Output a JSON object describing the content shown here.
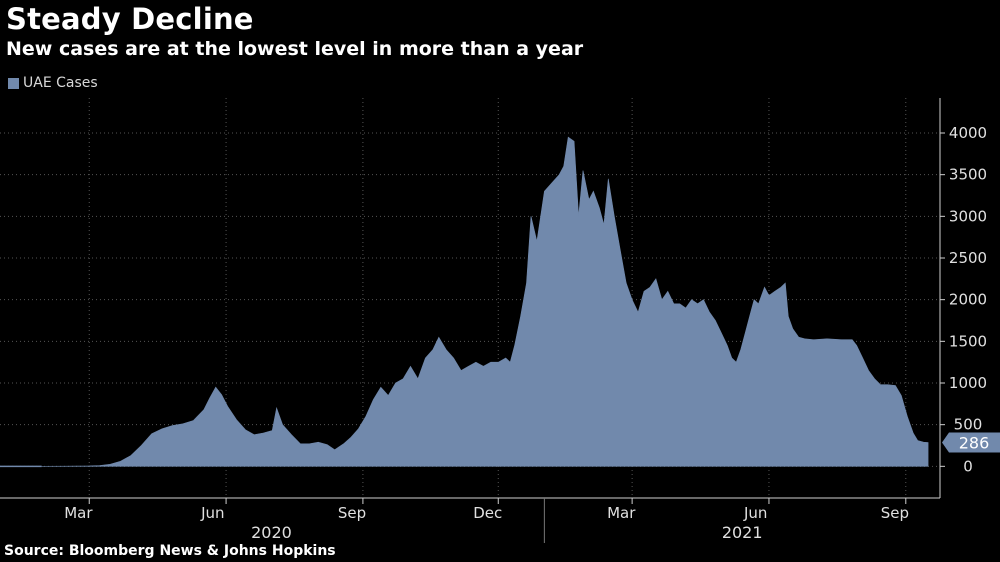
{
  "chart_data": {
    "type": "area",
    "title": "Steady Decline",
    "subtitle": "New cases are at the lowest level in more than a year",
    "source": "Source: Bloomberg News & Johns Hopkins",
    "legend": [
      {
        "name": "UAE Cases",
        "color": "#7189ac"
      }
    ],
    "ylim": [
      -380,
      4420
    ],
    "yticks": [
      0,
      500,
      1000,
      1500,
      2000,
      2500,
      3000,
      3500,
      4000
    ],
    "ytick_labels": [
      "0",
      "500",
      "1000",
      "1500",
      "2000",
      "2500",
      "3000",
      "3500",
      "4000"
    ],
    "xlim": [
      "2020-01-01",
      "2021-09-24"
    ],
    "month_ticks": [
      {
        "date": "2020-03-01",
        "label": "Mar"
      },
      {
        "date": "2020-06-01",
        "label": "Jun"
      },
      {
        "date": "2020-09-01",
        "label": "Sep"
      },
      {
        "date": "2020-12-01",
        "label": "Dec"
      },
      {
        "date": "2021-03-01",
        "label": "Mar"
      },
      {
        "date": "2021-06-01",
        "label": "Jun"
      },
      {
        "date": "2021-09-01",
        "label": "Sep"
      }
    ],
    "year_labels": [
      {
        "label": "2020",
        "from": "2020-01-01",
        "to": "2020-12-31"
      },
      {
        "label": "2021",
        "from": "2021-01-01",
        "to": "2021-09-24"
      }
    ],
    "year_divider": "2021-01-01",
    "last_value": {
      "date": "2021-09-16",
      "value": 286,
      "label": "286"
    },
    "grid": true,
    "series": [
      {
        "name": "UAE Cases",
        "color": "#7189ac",
        "points": [
          [
            "2020-01-29",
            0
          ],
          [
            "2020-02-15",
            2
          ],
          [
            "2020-03-01",
            5
          ],
          [
            "2020-03-08",
            10
          ],
          [
            "2020-03-15",
            25
          ],
          [
            "2020-03-22",
            60
          ],
          [
            "2020-03-29",
            130
          ],
          [
            "2020-04-05",
            250
          ],
          [
            "2020-04-12",
            390
          ],
          [
            "2020-04-19",
            450
          ],
          [
            "2020-04-26",
            490
          ],
          [
            "2020-05-03",
            510
          ],
          [
            "2020-05-10",
            550
          ],
          [
            "2020-05-17",
            680
          ],
          [
            "2020-05-21",
            820
          ],
          [
            "2020-05-25",
            950
          ],
          [
            "2020-05-29",
            860
          ],
          [
            "2020-06-02",
            720
          ],
          [
            "2020-06-08",
            560
          ],
          [
            "2020-06-14",
            440
          ],
          [
            "2020-06-20",
            380
          ],
          [
            "2020-06-26",
            400
          ],
          [
            "2020-07-02",
            430
          ],
          [
            "2020-07-05",
            700
          ],
          [
            "2020-07-09",
            500
          ],
          [
            "2020-07-15",
            380
          ],
          [
            "2020-07-21",
            270
          ],
          [
            "2020-07-27",
            270
          ],
          [
            "2020-08-02",
            290
          ],
          [
            "2020-08-08",
            260
          ],
          [
            "2020-08-13",
            200
          ],
          [
            "2020-08-19",
            270
          ],
          [
            "2020-08-24",
            350
          ],
          [
            "2020-08-29",
            450
          ],
          [
            "2020-09-03",
            600
          ],
          [
            "2020-09-08",
            800
          ],
          [
            "2020-09-13",
            950
          ],
          [
            "2020-09-18",
            850
          ],
          [
            "2020-09-23",
            1000
          ],
          [
            "2020-09-28",
            1050
          ],
          [
            "2020-10-03",
            1200
          ],
          [
            "2020-10-08",
            1050
          ],
          [
            "2020-10-13",
            1300
          ],
          [
            "2020-10-18",
            1400
          ],
          [
            "2020-10-22",
            1550
          ],
          [
            "2020-10-27",
            1400
          ],
          [
            "2020-11-01",
            1300
          ],
          [
            "2020-11-06",
            1150
          ],
          [
            "2020-11-11",
            1200
          ],
          [
            "2020-11-16",
            1250
          ],
          [
            "2020-11-21",
            1200
          ],
          [
            "2020-11-26",
            1250
          ],
          [
            "2020-12-01",
            1250
          ],
          [
            "2020-12-06",
            1300
          ],
          [
            "2020-12-09",
            1250
          ],
          [
            "2020-12-12",
            1450
          ],
          [
            "2020-12-16",
            1800
          ],
          [
            "2020-12-20",
            2200
          ],
          [
            "2020-12-23",
            3000
          ],
          [
            "2020-12-27",
            2700
          ],
          [
            "2021-01-01",
            3300
          ],
          [
            "2021-01-06",
            3400
          ],
          [
            "2021-01-11",
            3500
          ],
          [
            "2021-01-14",
            3600
          ],
          [
            "2021-01-17",
            3950
          ],
          [
            "2021-01-21",
            3900
          ],
          [
            "2021-01-24",
            3000
          ],
          [
            "2021-01-27",
            3550
          ],
          [
            "2021-01-31",
            3200
          ],
          [
            "2021-02-03",
            3300
          ],
          [
            "2021-02-07",
            3100
          ],
          [
            "2021-02-10",
            2900
          ],
          [
            "2021-02-13",
            3450
          ],
          [
            "2021-02-17",
            3000
          ],
          [
            "2021-02-21",
            2600
          ],
          [
            "2021-02-25",
            2200
          ],
          [
            "2021-03-01",
            2000
          ],
          [
            "2021-03-05",
            1850
          ],
          [
            "2021-03-09",
            2100
          ],
          [
            "2021-03-13",
            2150
          ],
          [
            "2021-03-17",
            2250
          ],
          [
            "2021-03-21",
            2000
          ],
          [
            "2021-03-25",
            2100
          ],
          [
            "2021-03-29",
            1950
          ],
          [
            "2021-04-02",
            1950
          ],
          [
            "2021-04-06",
            1900
          ],
          [
            "2021-04-10",
            2000
          ],
          [
            "2021-04-14",
            1950
          ],
          [
            "2021-04-18",
            2000
          ],
          [
            "2021-04-22",
            1850
          ],
          [
            "2021-04-26",
            1750
          ],
          [
            "2021-04-30",
            1600
          ],
          [
            "2021-05-04",
            1450
          ],
          [
            "2021-05-07",
            1300
          ],
          [
            "2021-05-10",
            1250
          ],
          [
            "2021-05-13",
            1400
          ],
          [
            "2021-05-16",
            1600
          ],
          [
            "2021-05-19",
            1800
          ],
          [
            "2021-05-22",
            2000
          ],
          [
            "2021-05-25",
            1950
          ],
          [
            "2021-05-29",
            2150
          ],
          [
            "2021-06-01",
            2050
          ],
          [
            "2021-06-05",
            2100
          ],
          [
            "2021-06-09",
            2150
          ],
          [
            "2021-06-12",
            2200
          ],
          [
            "2021-06-14",
            1800
          ],
          [
            "2021-06-17",
            1650
          ],
          [
            "2021-06-21",
            1550
          ],
          [
            "2021-06-25",
            1530
          ],
          [
            "2021-07-01",
            1520
          ],
          [
            "2021-07-10",
            1530
          ],
          [
            "2021-07-20",
            1520
          ],
          [
            "2021-07-27",
            1520
          ],
          [
            "2021-07-30",
            1450
          ],
          [
            "2021-08-03",
            1300
          ],
          [
            "2021-08-07",
            1150
          ],
          [
            "2021-08-11",
            1050
          ],
          [
            "2021-08-15",
            980
          ],
          [
            "2021-08-20",
            980
          ],
          [
            "2021-08-25",
            970
          ],
          [
            "2021-08-29",
            850
          ],
          [
            "2021-09-02",
            600
          ],
          [
            "2021-09-06",
            400
          ],
          [
            "2021-09-09",
            310
          ],
          [
            "2021-09-13",
            290
          ],
          [
            "2021-09-16",
            286
          ]
        ]
      }
    ]
  }
}
